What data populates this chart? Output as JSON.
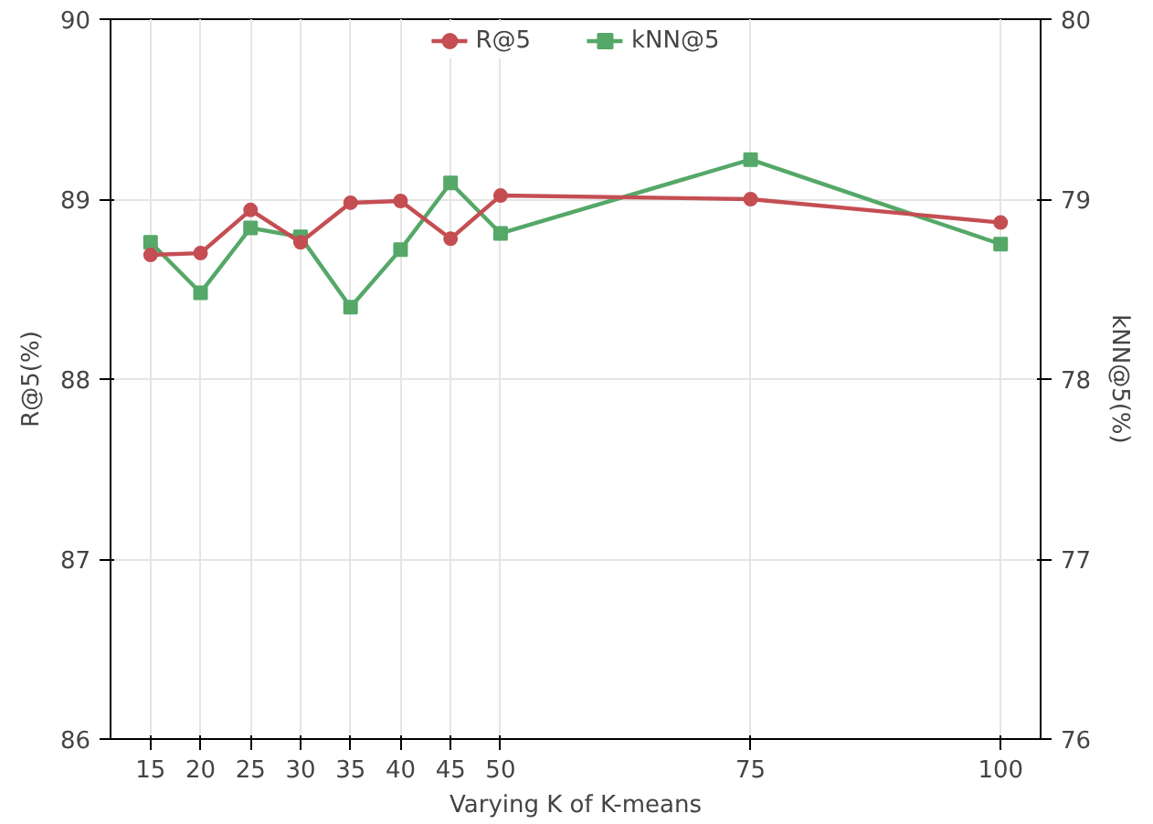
{
  "chart_data": {
    "type": "line",
    "xlabel": "Varying K of K-means",
    "ylabel": "R@5(%)",
    "y2label": "kNN@5(%)",
    "x": [
      15,
      20,
      25,
      30,
      35,
      40,
      45,
      50,
      75,
      100
    ],
    "series": [
      {
        "name": "R@5",
        "color": "#c44e52",
        "marker": "circle",
        "values": [
          88.69,
          88.7,
          88.94,
          88.76,
          88.98,
          88.99,
          88.78,
          89.02,
          89.0,
          88.87
        ]
      },
      {
        "name": "kNN@5",
        "color": "#55a868",
        "marker": "square",
        "axis": "y2",
        "values": [
          78.76,
          78.48,
          78.84,
          78.79,
          78.4,
          78.72,
          79.09,
          78.81,
          79.22,
          78.75
        ]
      }
    ],
    "xlim": [
      11,
      104
    ],
    "xticks": [
      15,
      20,
      25,
      30,
      35,
      40,
      45,
      50,
      75,
      100
    ],
    "ylim": [
      86,
      90
    ],
    "yticks": [
      86,
      87,
      88,
      89,
      90
    ],
    "y2lim": [
      76,
      80
    ],
    "y2ticks": [
      76,
      77,
      78,
      79,
      80
    ],
    "grid": true,
    "legend": "top",
    "line_style": "solid"
  }
}
